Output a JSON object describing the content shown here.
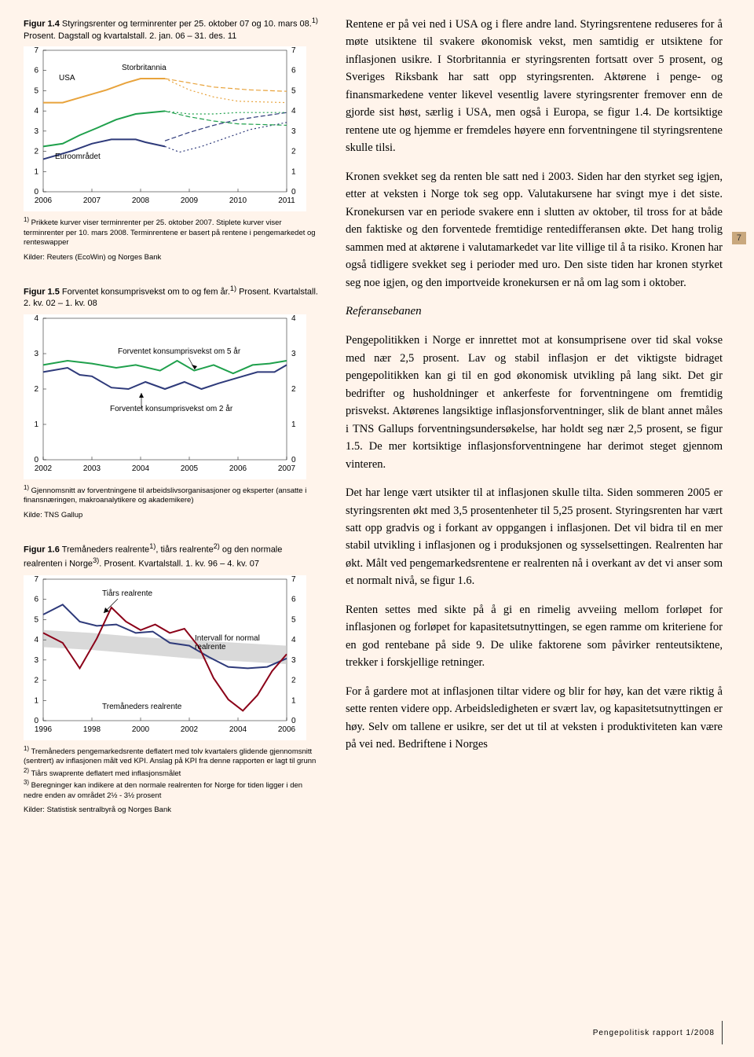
{
  "fig14": {
    "title_bold": "Figur 1.4",
    "title_rest": " Styringsrenter og terminrenter per 25. oktober 07 og 10. mars 08.",
    "title_sup": "1)",
    "title_tail": " Prosent. Dagstall og kvartalstall. 2. jan. 06 – 31. des. 11",
    "ylabels": [
      "0",
      "1",
      "2",
      "3",
      "4",
      "5",
      "6",
      "7"
    ],
    "xlabels": [
      "2006",
      "2007",
      "2008",
      "2009",
      "2010",
      "2011"
    ],
    "series_labels": {
      "usa": "USA",
      "stor": "Storbritannia",
      "euro": "Euroområdet"
    },
    "usa_color": "#2e3a7a",
    "uk_color": "#e8a33c",
    "euro_color": "#1fa04c",
    "dash_color": "#555",
    "usa_data": "0,0.77 0.12,0.71 0.2,0.66 0.28,0.63 0.38,0.63 0.42,0.65 0.5,0.68",
    "uk_data": "0,0.37 0.08,0.37 0.14,0.34 0.2,0.31 0.26,0.28 0.34,0.23 0.4,0.2 0.5,0.2",
    "euro_data": "0,0.68 0.08,0.66 0.15,0.6 0.22,0.55 0.3,0.49 0.38,0.45 0.5,0.43",
    "usa_dash": "0.5,0.68 0.56,0.72 0.65,0.68 0.75,0.62 0.85,0.56 1,0.51",
    "usa_dash2": "0.5,0.64 0.6,0.58 0.7,0.53 0.8,0.49 1,0.44",
    "uk_dash": "0.5,0.2 0.6,0.28 0.7,0.33 0.8,0.36 1,0.37",
    "uk_dash2": "0.5,0.2 0.6,0.23 0.7,0.26 0.85,0.28 1,0.29",
    "euro_dash": "0.5,0.43 0.6,0.45 0.7,0.45 0.8,0.44 1,0.44",
    "euro_dash2": "0.5,0.43 0.6,0.47 0.7,0.5 0.8,0.52 1,0.53",
    "footnote_sup": "1)",
    "footnote_text": " Prikkete kurver viser terminrenter per 25. oktober 2007. Stiplete kurver viser terminrenter per 10. mars 2008. Terminrentene er basert på rentene i pengemarkedet og renteswapper",
    "source": "Kilder: Reuters (EcoWin) og Norges Bank"
  },
  "fig15": {
    "title_bold": "Figur 1.5",
    "title_rest": " Forventet konsumprisvekst om to og fem år.",
    "title_sup": "1)",
    "title_tail": " Prosent. Kvartalstall. 2. kv. 02 – 1. kv. 08",
    "ylabels": [
      "0",
      "1",
      "2",
      "3",
      "4"
    ],
    "xlabels": [
      "2002",
      "2003",
      "2004",
      "2005",
      "2006",
      "2007"
    ],
    "label5": "Forventet konsumprisvekst om 5 år",
    "label2": "Forventet konsumprisvekst om 2 år",
    "line5_color": "#1fa04c",
    "line2_color": "#2e3a7a",
    "line5_data": "0,0.33 0.1,0.3 0.2,0.32 0.3,0.35 0.38,0.33 0.48,0.37 0.55,0.3 0.62,0.37 0.7,0.33 0.78,0.39 0.86,0.33 0.93,0.32 1,0.3",
    "line2_data": "0,0.38 0.1,0.35 0.15,0.4 0.2,0.41 0.28,0.49 0.35,0.5 0.42,0.45 0.5,0.5 0.58,0.45 0.65,0.5 0.72,0.46 0.8,0.42 0.88,0.38 0.95,0.38 1,0.33",
    "footnote_sup": "1)",
    "footnote_text": " Gjennomsnitt av forventningene til arbeidslivsorganisasjoner og eksperter (ansatte i finansnæringen, makroanalytikere og akademikere)",
    "source": "Kilde: TNS Gallup"
  },
  "fig16": {
    "title_bold": "Figur 1.6",
    "title_rest": " Tremåneders realrente",
    "sup1": "1)",
    "mid": ", tiårs realrente",
    "sup2": "2)",
    "mid2": " og den normale realrenten i Norge",
    "sup3": "3)",
    "tail": ". Prosent. Kvartalstall. 1. kv. 96 – 4. kv. 07",
    "ylabels": [
      "0",
      "1",
      "2",
      "3",
      "4",
      "5",
      "6",
      "7"
    ],
    "xlabels": [
      "1996",
      "1998",
      "2000",
      "2002",
      "2004",
      "2006"
    ],
    "label_tiar": "Tiårs realrente",
    "label_interval": "Intervall for normal realrente",
    "label_trem": "Tremåneders realrente",
    "tiar_color": "#2e3a7a",
    "trem_color": "#8b0018",
    "band_color": "#c9c9c9",
    "band_poly": "0,0.48 0.2,0.5 0.4,0.53 0.6,0.56 0.8,0.58 1,0.6 1,0.47 0.8,0.45 0.6,0.43 0.4,0.41 0.2,0.38 0,0.36",
    "tiar_data": "0,0.25 0.08,0.18 0.15,0.3 0.22,0.33 0.3,0.32 0.38,0.38 0.45,0.37 0.52,0.45 0.6,0.47 0.68,0.55 0.76,0.62 0.84,0.63 0.92,0.62 1,0.56",
    "trem_data": "0,0.38 0.08,0.45 0.15,0.63 0.22,0.42 0.28,0.2 0.34,0.3 0.4,0.36 0.46,0.32 0.52,0.38 0.58,0.35 0.64,0.48 0.7,0.7 0.76,0.85 0.82,0.93 0.88,0.82 0.94,0.65 1,0.53",
    "foot1sup": "1)",
    "foot1": " Tremåneders pengemarkedsrente deflatert med tolv kvartalers glidende gjennomsnitt (sentrert) av inflasjonen målt ved KPI. Anslag på KPI fra denne rapporten er lagt til grunn",
    "foot2sup": "2)",
    "foot2": " Tiårs swaprente deflatert med inflasjonsmålet",
    "foot3sup": "3)",
    "foot3": " Beregninger kan indikere at den normale realrenten for Norge for tiden ligger i den nedre enden av området 2½ - 3½ prosent",
    "source": "Kilder: Statistisk sentralbyrå og Norges Bank"
  },
  "body": {
    "p1": "Rentene er på vei ned i USA og i flere andre land. Styringsrentene reduseres for å møte utsiktene til svakere økonomisk vekst, men samtidig er utsiktene for inflasjonen usikre. I Storbritannia er styringsrenten fortsatt over 5 prosent, og Sveriges Riksbank har satt opp styringsrenten. Aktørene i penge- og finansmarkedene venter likevel vesentlig lavere styringsrenter fremover enn de gjorde sist høst, særlig i USA, men også i Europa, se figur 1.4. De kortsiktige rentene ute og hjemme er fremdeles høyere enn forventningene til styringsrentene skulle tilsi.",
    "p2": "Kronen svekket seg da renten ble satt ned i 2003. Siden har den styrket seg igjen, etter at veksten i Norge tok seg opp. Valutakursene har svingt mye i det siste. Kronekursen var en periode svakere enn i slutten av oktober, til tross for at både den faktiske og den forventede fremtidige rentedifferansen økte. Det hang trolig sammen med at aktørene i valutamarkedet var lite villige til å ta risiko. Kronen har også tidligere svekket seg i perioder med uro. Den siste tiden har kronen styrket seg noe igjen, og den importveide kronekursen er nå om lag som i oktober.",
    "h3": "Referansebanen",
    "p3": "Pengepolitikken i Norge er innrettet mot at konsumprisene over tid skal vokse med nær 2,5 prosent. Lav og stabil inflasjon er det viktigste bidraget pengepolitikken kan gi til en god økonomisk utvikling på lang sikt. Det gir bedrifter og husholdninger et ankerfeste for forventningene om fremtidig prisvekst. Aktørenes langsiktige inflasjonsforventninger, slik de blant annet måles i TNS Gallups forventningsundersøkelse, har holdt seg nær 2,5 prosent, se figur 1.5. De mer kortsiktige inflasjonsforventningene har derimot steget gjennom vinteren.",
    "p4": "Det har lenge vært utsikter til at inflasjonen skulle tilta. Siden sommeren 2005 er styringsrenten økt med 3,5 prosentenheter til 5,25 prosent. Styringsrenten har vært satt opp gradvis og i forkant av oppgangen i inflasjonen. Det vil bidra til en mer stabil utvikling i inflasjonen og i produksjonen og sysselsettingen. Realrenten har økt. Målt ved pengemarkedsrentene er realrenten nå i overkant av det vi anser som et normalt nivå, se figur 1.6.",
    "p5": "Renten settes med sikte på å gi en rimelig avveiing mellom forløpet for inflasjonen og forløpet for kapasitetsutnyttingen, se egen ramme om kriteriene for en god rentebane på side 9. De ulike faktorene som påvirker renteutsiktene, trekker i forskjellige retninger.",
    "p6": "For å gardere mot at inflasjonen tiltar videre og blir for høy, kan det være riktig å sette renten videre opp. Arbeidsledigheten er svært lav, og kapasitetsutnyttingen er høy. Selv om tallene er usikre, ser det ut til at veksten i produktiviteten kan være på vei ned. Bedriftene i Norges"
  },
  "page_number": "7",
  "footer": "Pengepolitisk rapport 1/2008"
}
